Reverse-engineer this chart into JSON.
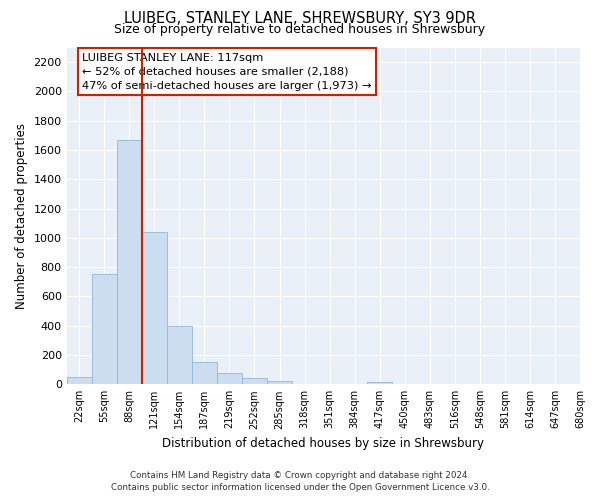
{
  "title": "LUIBEG, STANLEY LANE, SHREWSBURY, SY3 9DR",
  "subtitle": "Size of property relative to detached houses in Shrewsbury",
  "xlabel": "Distribution of detached houses by size in Shrewsbury",
  "ylabel": "Number of detached properties",
  "bar_color": "#ccddf0",
  "bar_edge_color": "#90b8d8",
  "vline_color": "#cc2200",
  "vline_x_index": 2.5,
  "bin_labels": [
    "22sqm",
    "55sqm",
    "88sqm",
    "121sqm",
    "154sqm",
    "187sqm",
    "219sqm",
    "252sqm",
    "285sqm",
    "318sqm",
    "351sqm",
    "384sqm",
    "417sqm",
    "450sqm",
    "483sqm",
    "516sqm",
    "548sqm",
    "581sqm",
    "614sqm",
    "647sqm",
    "680sqm"
  ],
  "bar_heights": [
    50,
    750,
    1670,
    1040,
    400,
    150,
    80,
    40,
    25,
    0,
    0,
    0,
    17,
    0,
    0,
    0,
    0,
    0,
    0,
    0
  ],
  "ylim": [
    0,
    2300
  ],
  "yticks": [
    0,
    200,
    400,
    600,
    800,
    1000,
    1200,
    1400,
    1600,
    1800,
    2000,
    2200
  ],
  "annotation_line1": "LUIBEG STANLEY LANE: 117sqm",
  "annotation_line2": "← 52% of detached houses are smaller (2,188)",
  "annotation_line3": "47% of semi-detached houses are larger (1,973) →",
  "footer_line1": "Contains HM Land Registry data © Crown copyright and database right 2024.",
  "footer_line2": "Contains public sector information licensed under the Open Government Licence v3.0.",
  "bg_color": "#ffffff",
  "plot_bg_color": "#eaf0f8"
}
